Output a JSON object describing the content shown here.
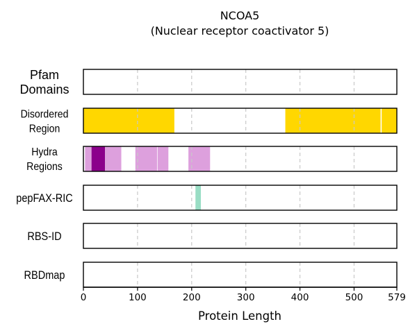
{
  "chart_data": {
    "type": "track",
    "title": "NCOA5",
    "subtitle": "(Nuclear receptor coactivator 5)",
    "xlabel": "Protein Length",
    "xlim": [
      0,
      579
    ],
    "xticks": [
      0,
      100,
      200,
      300,
      400,
      500,
      579
    ],
    "grid": "vertical dashed",
    "tracks": [
      {
        "label": [
          "Pfam",
          "Domains"
        ],
        "segments": []
      },
      {
        "label": [
          "Disordered",
          "Region"
        ],
        "segments": [
          {
            "start": 0,
            "end": 168,
            "color": "#FFD700"
          },
          {
            "start": 373,
            "end": 549,
            "color": "#FFD700"
          },
          {
            "start": 551,
            "end": 579,
            "color": "#FFD700"
          }
        ]
      },
      {
        "label": [
          "Hydra",
          "Regions"
        ],
        "segments": [
          {
            "start": 3,
            "end": 15,
            "color": "#DDA0DD"
          },
          {
            "start": 15,
            "end": 40,
            "color": "#8B008B"
          },
          {
            "start": 40,
            "end": 70,
            "color": "#DDA0DD"
          },
          {
            "start": 96,
            "end": 136,
            "color": "#DDA0DD"
          },
          {
            "start": 137,
            "end": 157,
            "color": "#DDA0DD"
          },
          {
            "start": 194,
            "end": 234,
            "color": "#DDA0DD"
          }
        ]
      },
      {
        "label": [
          "pepFAX-RIC"
        ],
        "segments": [
          {
            "start": 207,
            "end": 217,
            "color": "#99DDC4"
          }
        ]
      },
      {
        "label": [
          "RBS-ID"
        ],
        "segments": []
      },
      {
        "label": [
          "RBDmap"
        ],
        "segments": []
      }
    ]
  }
}
